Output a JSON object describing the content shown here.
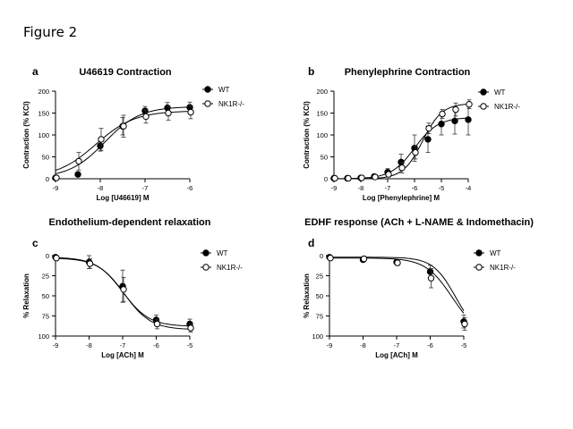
{
  "figure_title": "Figure 2",
  "chart_data": [
    {
      "panel": "a",
      "type": "line",
      "title": "U46619 Contraction",
      "xlabel": "Log [U46619] M",
      "ylabel": "Contraction (% KCl)",
      "xlim": [
        -9,
        -6
      ],
      "ylim": [
        0,
        200
      ],
      "x_ticks": [
        -9,
        -8,
        -7,
        -6
      ],
      "x_tick_labels": [
        "-9",
        "-8",
        "-7",
        "-6"
      ],
      "y_ticks": [
        0,
        50,
        100,
        150,
        200
      ],
      "y_tick_labels": [
        "0",
        "50",
        "100",
        "150",
        "200"
      ],
      "y_inverted": false,
      "legend_position": "top-right",
      "series": [
        {
          "name": "WT",
          "marker": "filled-circle",
          "x": [
            -9,
            -8.5,
            -8,
            -7.5,
            -7,
            -6.5,
            -6
          ],
          "y": [
            2,
            10,
            75,
            120,
            155,
            162,
            163
          ],
          "err": [
            0,
            4,
            12,
            20,
            10,
            12,
            12
          ],
          "fit": {
            "bottom": 2,
            "top": 165,
            "ec50_log": -7.9,
            "hill": 1.1
          }
        },
        {
          "name": "NK1R-/-",
          "marker": "open-circle",
          "x": [
            -9,
            -8.5,
            -8,
            -7.5,
            -7,
            -6.5,
            -6
          ],
          "y": [
            2,
            40,
            90,
            120,
            142,
            150,
            152
          ],
          "err": [
            0,
            20,
            25,
            25,
            15,
            16,
            15
          ],
          "fit": {
            "bottom": 2,
            "top": 155,
            "ec50_log": -8.1,
            "hill": 1.0
          }
        }
      ]
    },
    {
      "panel": "b",
      "type": "line",
      "title": "Phenylephrine Contraction",
      "xlabel": "Log [Phenylephrine] M",
      "ylabel": "Contraction (% KCl)",
      "xlim": [
        -9,
        -4
      ],
      "ylim": [
        0,
        200
      ],
      "x_ticks": [
        -9,
        -8,
        -7,
        -6,
        -5,
        -4
      ],
      "x_tick_labels": [
        "-9",
        "-8",
        "-7",
        "-6",
        "-5",
        "-4"
      ],
      "y_ticks": [
        0,
        50,
        100,
        150,
        200
      ],
      "y_tick_labels": [
        "0",
        "50",
        "100",
        "150",
        "200"
      ],
      "y_inverted": false,
      "legend_position": "top-right",
      "series": [
        {
          "name": "WT",
          "marker": "filled-circle",
          "x": [
            -9,
            -8.5,
            -8,
            -7.5,
            -7,
            -6.5,
            -6,
            -5.5,
            -5,
            -4.5,
            -4
          ],
          "y": [
            1,
            1,
            2,
            5,
            15,
            38,
            70,
            90,
            125,
            132,
            135
          ],
          "err": [
            0,
            0,
            2,
            4,
            8,
            18,
            30,
            30,
            25,
            30,
            35
          ],
          "fit": {
            "bottom": 0,
            "top": 140,
            "ec50_log": -6.0,
            "hill": 1.0
          }
        },
        {
          "name": "NK1R-/-",
          "marker": "open-circle",
          "x": [
            -9,
            -8.5,
            -8,
            -7.5,
            -7,
            -6.5,
            -6,
            -5.5,
            -5,
            -4.5,
            -4
          ],
          "y": [
            1,
            1,
            2,
            4,
            10,
            25,
            60,
            115,
            148,
            158,
            170
          ],
          "err": [
            0,
            0,
            2,
            3,
            6,
            12,
            15,
            12,
            10,
            15,
            10
          ],
          "fit": {
            "bottom": 0,
            "top": 172,
            "ec50_log": -5.7,
            "hill": 1.2
          }
        }
      ]
    },
    {
      "panel": "c",
      "type": "line",
      "title": "Endothelium-dependent relaxation",
      "xlabel": "Log [ACh] M",
      "ylabel": "% Relaxation",
      "xlim": [
        -9,
        -5
      ],
      "ylim": [
        0,
        100
      ],
      "x_ticks": [
        -9,
        -8,
        -7,
        -6,
        -5
      ],
      "x_tick_labels": [
        "-9",
        "-8",
        "-7",
        "-6",
        "-5"
      ],
      "y_ticks": [
        0,
        25,
        50,
        75,
        100
      ],
      "y_tick_labels": [
        "0",
        "25",
        "50",
        "75",
        "100"
      ],
      "y_inverted": true,
      "legend_position": "top-right",
      "series": [
        {
          "name": "WT",
          "marker": "filled-circle",
          "x": [
            -9,
            -8,
            -7,
            -6,
            -5
          ],
          "y": [
            2,
            8,
            38,
            80,
            85
          ],
          "err": [
            3,
            8,
            20,
            6,
            6
          ],
          "fit": {
            "bottom": 2,
            "top": 88,
            "ec50_log": -7.0,
            "hill": 1.1
          }
        },
        {
          "name": "NK1R-/-",
          "marker": "open-circle",
          "x": [
            -9,
            -8,
            -7,
            -6,
            -5
          ],
          "y": [
            3,
            10,
            42,
            85,
            90
          ],
          "err": [
            3,
            6,
            15,
            6,
            5
          ],
          "fit": {
            "bottom": 3,
            "top": 92,
            "ec50_log": -6.95,
            "hill": 1.1
          }
        }
      ]
    },
    {
      "panel": "d",
      "type": "line",
      "title": "EDHF response (ACh + L-NAME & Indomethacin)",
      "xlabel": "Log [ACh] M",
      "ylabel": "% Relaxation",
      "xlim": [
        -9,
        -5
      ],
      "ylim": [
        0,
        100
      ],
      "x_ticks": [
        -9,
        -8,
        -7,
        -6,
        -5
      ],
      "x_tick_labels": [
        "-9",
        "-8",
        "-7",
        "-6",
        "-5"
      ],
      "y_ticks": [
        0,
        25,
        50,
        75,
        100
      ],
      "y_tick_labels": [
        "0",
        "25",
        "50",
        "75",
        "100"
      ],
      "y_inverted": true,
      "legend_position": "top-right",
      "series": [
        {
          "name": "WT",
          "marker": "filled-circle",
          "x": [
            -9,
            -8,
            -7,
            -6,
            -5
          ],
          "y": [
            2,
            5,
            8,
            20,
            82
          ],
          "err": [
            2,
            3,
            3,
            8,
            8
          ],
          "fit": {
            "bottom": 2,
            "top": 100,
            "ec50_log": -5.25,
            "hill": 1.3
          }
        },
        {
          "name": "NK1R-/-",
          "marker": "open-circle",
          "x": [
            -9,
            -8,
            -7,
            -6,
            -5
          ],
          "y": [
            3,
            4,
            9,
            28,
            85
          ],
          "err": [
            2,
            3,
            3,
            12,
            8
          ],
          "fit": {
            "bottom": 3,
            "top": 100,
            "ec50_log": -5.35,
            "hill": 1.1
          }
        }
      ]
    }
  ]
}
